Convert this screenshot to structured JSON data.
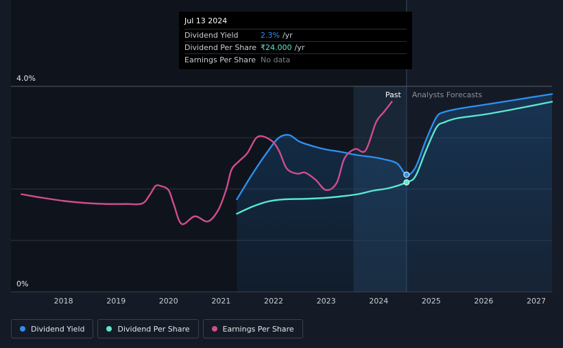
{
  "chart_data": {
    "type": "line",
    "y_ticks": [
      "4.0%",
      "0%"
    ],
    "ylim": [
      0,
      4.0
    ],
    "x_ticks": [
      "2018",
      "2019",
      "2020",
      "2021",
      "2022",
      "2023",
      "2024",
      "2025",
      "2026",
      "2027"
    ],
    "xlim": [
      2017.0,
      2027.3
    ],
    "past_label": "Past",
    "forecast_label": "Analysts Forecasts",
    "past_forecast_divider": 2024.53,
    "series": [
      {
        "name": "Dividend Yield",
        "color": "#2d8ff0",
        "x": [
          2021.3,
          2021.6,
          2021.9,
          2022.1,
          2022.3,
          2022.5,
          2022.8,
          2023.0,
          2023.3,
          2023.6,
          2023.9,
          2024.1,
          2024.35,
          2024.53,
          2024.7,
          2024.9,
          2025.1,
          2025.25,
          2025.5,
          2026.0,
          2026.5,
          2027.3
        ],
        "y": [
          1.8,
          2.3,
          2.75,
          3.0,
          3.05,
          2.92,
          2.82,
          2.77,
          2.72,
          2.66,
          2.62,
          2.58,
          2.5,
          2.28,
          2.42,
          2.95,
          3.4,
          3.5,
          3.56,
          3.64,
          3.72,
          3.85
        ]
      },
      {
        "name": "Dividend Per Share",
        "color": "#5ae8d0",
        "x": [
          2021.3,
          2021.6,
          2021.9,
          2022.2,
          2022.6,
          2023.0,
          2023.3,
          2023.6,
          2023.9,
          2024.2,
          2024.53,
          2024.7,
          2024.9,
          2025.1,
          2025.25,
          2025.5,
          2026.0,
          2026.5,
          2027.3
        ],
        "y": [
          1.52,
          1.66,
          1.76,
          1.8,
          1.81,
          1.83,
          1.86,
          1.9,
          1.97,
          2.02,
          2.13,
          2.25,
          2.75,
          3.2,
          3.3,
          3.38,
          3.45,
          3.54,
          3.7
        ]
      },
      {
        "name": "Earnings Per Share",
        "color": "#d14d8e",
        "x": [
          2017.2,
          2017.6,
          2018.0,
          2018.4,
          2018.8,
          2019.2,
          2019.5,
          2019.65,
          2019.75,
          2019.85,
          2020.0,
          2020.1,
          2020.25,
          2020.5,
          2020.75,
          2020.95,
          2021.1,
          2021.2,
          2021.35,
          2021.5,
          2021.7,
          2021.95,
          2022.1,
          2022.25,
          2022.45,
          2022.6,
          2022.8,
          2023.0,
          2023.2,
          2023.35,
          2023.55,
          2023.75,
          2023.95,
          2024.1,
          2024.25
        ],
        "y": [
          1.9,
          1.83,
          1.77,
          1.73,
          1.71,
          1.71,
          1.72,
          1.9,
          2.06,
          2.06,
          1.98,
          1.7,
          1.32,
          1.47,
          1.37,
          1.6,
          2.0,
          2.38,
          2.55,
          2.7,
          3.02,
          2.95,
          2.75,
          2.4,
          2.3,
          2.32,
          2.18,
          1.98,
          2.12,
          2.6,
          2.78,
          2.75,
          3.3,
          3.5,
          3.7
        ]
      }
    ],
    "hover_date": 2024.53
  },
  "tooltip": {
    "date": "Jul 13 2024",
    "rows": [
      {
        "label": "Dividend Yield",
        "value": "2.3%",
        "unit": "/yr",
        "color": "#2d8ff0"
      },
      {
        "label": "Dividend Per Share",
        "value": "₹24.000",
        "unit": "/yr",
        "color": "#5ae8d0"
      },
      {
        "label": "Earnings Per Share",
        "value": "No data",
        "unit": "",
        "color": "#7a808a"
      }
    ]
  },
  "legend": [
    {
      "label": "Dividend Yield",
      "color": "#2d8ff0"
    },
    {
      "label": "Dividend Per Share",
      "color": "#5ae8d0"
    },
    {
      "label": "Earnings Per Share",
      "color": "#d14d8e"
    }
  ]
}
